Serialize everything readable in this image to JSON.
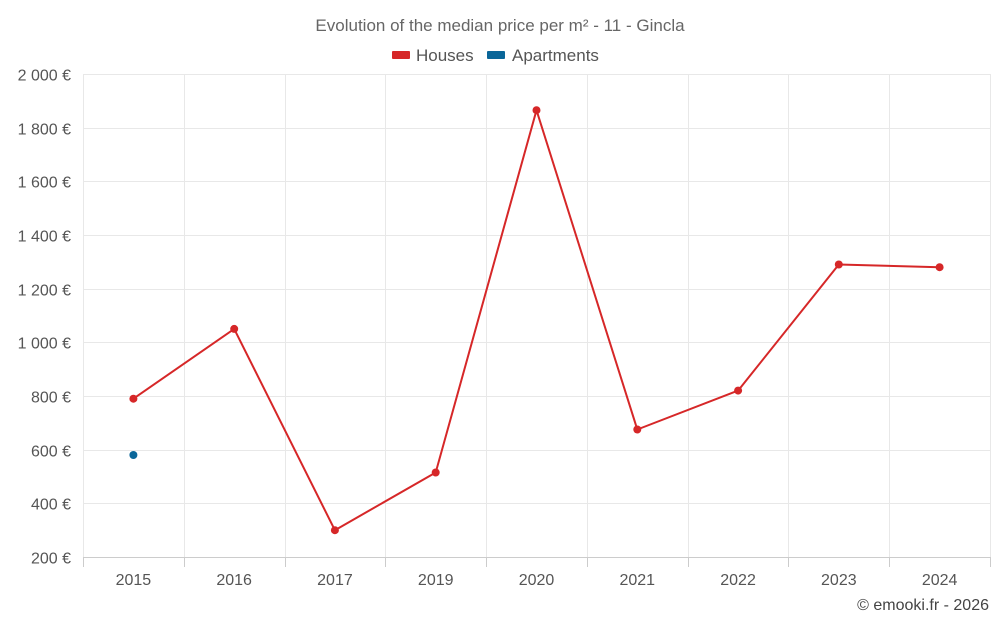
{
  "chart_data": {
    "type": "line",
    "title": "Evolution of the median price per m² - 11 - Gincla",
    "categories": [
      "2015",
      "2016",
      "2017",
      "2019",
      "2020",
      "2021",
      "2022",
      "2023",
      "2024"
    ],
    "y_ticks": [
      200,
      400,
      600,
      800,
      1000,
      1200,
      1400,
      1600,
      1800,
      2000
    ],
    "y_tick_labels": [
      "200 €",
      "400 €",
      "600 €",
      "800 €",
      "1 000 €",
      "1 200 €",
      "1 400 €",
      "1 600 €",
      "1 800 €",
      "2 000 €"
    ],
    "ylim": [
      200,
      2000
    ],
    "xlabel": "",
    "ylabel": "",
    "grid": true,
    "legend_position": "top-center",
    "series": [
      {
        "name": "Houses",
        "color": "#d62728",
        "values": [
          790,
          1050,
          300,
          515,
          1865,
          675,
          820,
          1290,
          1280
        ]
      },
      {
        "name": "Apartments",
        "color": "#0a6699",
        "values": [
          580,
          null,
          null,
          null,
          null,
          null,
          null,
          null,
          null
        ]
      }
    ]
  },
  "credit": "© emooki.fr - 2026"
}
